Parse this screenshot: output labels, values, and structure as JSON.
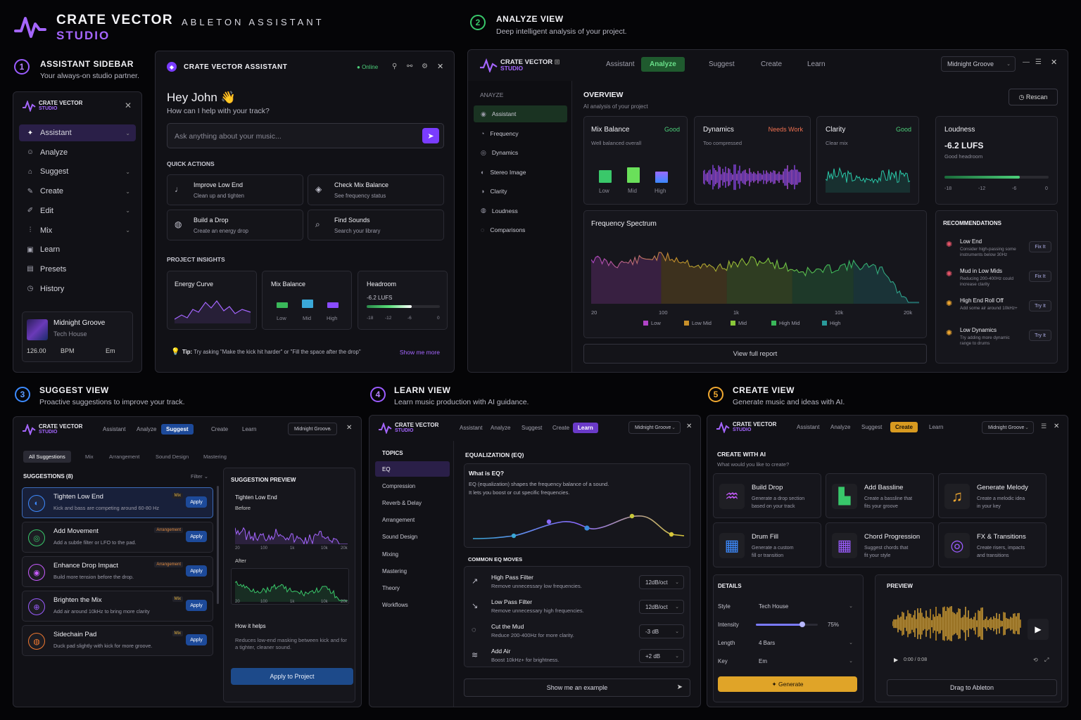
{
  "brand": {
    "name_line1": "CRATE VECTOR",
    "name_line2": "STUDIO",
    "tagline": "ABLETON ASSISTANT",
    "accent": "#a566ff"
  },
  "sections": {
    "s1": {
      "num": "1",
      "title": "ASSISTANT SIDEBAR",
      "sub": "Your always-on studio partner.",
      "color": "#9b5cff"
    },
    "s2": {
      "num": "2",
      "title": "ANALYZE VIEW",
      "sub": "Deep intelligent analysis of your project.",
      "color": "#38c76a"
    },
    "s3": {
      "num": "3",
      "title": "SUGGEST VIEW",
      "sub": "Proactive suggestions to improve your track.",
      "color": "#3d8bff"
    },
    "s4": {
      "num": "4",
      "title": "LEARN VIEW",
      "sub": "Learn music production with AI guidance.",
      "color": "#9b5cff"
    },
    "s5": {
      "num": "5",
      "title": "CREATE VIEW",
      "sub": "Generate music and ideas with AI.",
      "color": "#f0a830"
    }
  },
  "sidebar": {
    "logo1": "CRATE VECTOR",
    "logo2": "STUDIO",
    "items": [
      {
        "label": "Assistant",
        "icon": "sparkle-icon",
        "glyph": "✦"
      },
      {
        "label": "Analyze",
        "icon": "user-icon",
        "glyph": "☺"
      },
      {
        "label": "Suggest",
        "icon": "tag-icon",
        "glyph": "⌂"
      },
      {
        "label": "Create",
        "icon": "pencil-icon",
        "glyph": "✎"
      },
      {
        "label": "Edit",
        "icon": "edit-icon",
        "glyph": "✐"
      },
      {
        "label": "Mix",
        "icon": "sliders-icon",
        "glyph": "⫶"
      },
      {
        "label": "Learn",
        "icon": "book-icon",
        "glyph": "▣"
      },
      {
        "label": "Presets",
        "icon": "preset-icon",
        "glyph": "▤"
      },
      {
        "label": "History",
        "icon": "clock-icon",
        "glyph": "◷"
      }
    ],
    "project": {
      "name": "Midnight Groove",
      "genre": "Tech House",
      "bpm": "126.00",
      "bpm_label": "BPM",
      "key": "Em"
    }
  },
  "assistant": {
    "title": "CRATE VECTOR ASSISTANT",
    "status": "Online",
    "greeting": "Hey John 👋",
    "prompt": "How can I help with your track?",
    "input_placeholder": "Ask anything about your music...",
    "quick_title": "QUICK ACTIONS",
    "quick": [
      {
        "title": "Improve Low End",
        "sub": "Clean up and tighten",
        "glyph": "♩"
      },
      {
        "title": "Check Mix Balance",
        "sub": "See frequency status",
        "glyph": "◈"
      },
      {
        "title": "Build a Drop",
        "sub": "Create an energy drop",
        "glyph": "◍"
      },
      {
        "title": "Find Sounds",
        "sub": "Search your library",
        "glyph": "⌕"
      }
    ],
    "insights_title": "PROJECT INSIGHTS",
    "insights": {
      "energy": "Energy Curve",
      "balance": "Mix Balance",
      "headroom": "Headroom",
      "lufs": "-6.2 LUFS",
      "bands": [
        "Low",
        "Mid",
        "High"
      ],
      "scale": [
        "-18",
        "-12",
        "-6",
        "0"
      ]
    },
    "tip_label": "Tip:",
    "tip": "Try asking \"Make the kick hit harder\" or \"Fill the space after the drop\"",
    "show_more": "Show me more"
  },
  "analyze": {
    "tabs": [
      "Assistant",
      "Analyze",
      "Suggest",
      "Create",
      "Learn"
    ],
    "project": "Midnight Groove",
    "side_title": "ANAYZE",
    "side_items": [
      "Assistant",
      "Frequency",
      "Dynamics",
      "Stereo Image",
      "Clarity",
      "Loudness",
      "Comparisons"
    ],
    "overview": "OVERVIEW",
    "overview_sub": "AI analysis of your project",
    "rescan": "Rescan",
    "cards": {
      "mix": {
        "title": "Mix Balance",
        "status": "Good",
        "desc": "Well balanced overall",
        "bands": [
          "Low",
          "Mid",
          "High"
        ]
      },
      "dyn": {
        "title": "Dynamics",
        "status": "Needs Work",
        "desc": "Too compressed"
      },
      "clar": {
        "title": "Clarity",
        "status": "Good",
        "desc": "Clear mix"
      },
      "loud": {
        "title": "Loudness",
        "value": "-6.2 LUFS",
        "desc": "Good headroom",
        "scale": [
          "-18",
          "-12",
          "-6",
          "0"
        ],
        "level": 0.72
      }
    },
    "spectrum": {
      "title": "Frequency Spectrum",
      "ticks": [
        "20",
        "100",
        "1k",
        "10k",
        "20k"
      ],
      "legend": [
        {
          "n": "Low",
          "c": "#b144c8"
        },
        {
          "n": "Low Mid",
          "c": "#c8902a"
        },
        {
          "n": "Mid",
          "c": "#8ac83a"
        },
        {
          "n": "High Mid",
          "c": "#3ab85a"
        },
        {
          "n": "High",
          "c": "#2a9a9a"
        }
      ]
    },
    "report": "View full report",
    "rec_title": "RECOMMENDATIONS",
    "recs": [
      {
        "title": "Low End",
        "desc": "Consider high-passing some instruments below 30Hz",
        "action": "Fix It",
        "color": "#e8556a"
      },
      {
        "title": "Mud in Low Mids",
        "desc": "Reducing 200-400Hz could increase clarity",
        "action": "Fix It",
        "color": "#e8556a"
      },
      {
        "title": "High End Roll Off",
        "desc": "Add some air around 10kHz+",
        "action": "Try It",
        "color": "#f0a830"
      },
      {
        "title": "Low Dynamics",
        "desc": "Try adding more dynamic range to drums",
        "action": "Try It",
        "color": "#f0a830"
      }
    ]
  },
  "suggest": {
    "tabs": [
      "Assistant",
      "Analyze",
      "Suggest",
      "Create",
      "Learn"
    ],
    "project": "Midnight Groove",
    "filters": [
      "All Suggestions",
      "Mix",
      "Arrangement",
      "Sound Design",
      "Mastering"
    ],
    "list_title": "SUGGESTIONS (8)",
    "filter_label": "Filter",
    "items": [
      {
        "title": "Tighten Low End",
        "desc": "Kick and bass are competing around 60-80 Hz",
        "tag": "Mix",
        "color": "#3d8bff",
        "glyph": "◐"
      },
      {
        "title": "Add Movement",
        "desc": "Add a subtle filter or LFO to the pad.",
        "tag": "Arrangement",
        "color": "#38c76a",
        "glyph": "◎"
      },
      {
        "title": "Enhance Drop Impact",
        "desc": "Build more tension before the drop.",
        "tag": "Arrangement",
        "color": "#c85cff",
        "glyph": "◉"
      },
      {
        "title": "Brighten the Mix",
        "desc": "Add air around 10kHz to bring more clarity",
        "tag": "Mix",
        "color": "#9b5cff",
        "glyph": "⊕"
      },
      {
        "title": "Sidechain Pad",
        "desc": "Duck pad slightly with kick for more groove.",
        "tag": "Mix",
        "color": "#f07830",
        "glyph": "◍"
      }
    ],
    "apply": "Apply",
    "preview_title": "SUGGESTION PREVIEW",
    "preview_name": "Tighten Low End",
    "before": "Before",
    "after": "After",
    "ticks": [
      "20",
      "100",
      "1k",
      "10k",
      "20k"
    ],
    "how_title": "How it helps",
    "how_desc": "Reduces low-end masking between kick and for a tighter, cleaner sound.",
    "apply_project": "Apply to Project"
  },
  "learn": {
    "tabs": [
      "Assistant",
      "Analyze",
      "Suggest",
      "Create",
      "Learn"
    ],
    "project": "Midnight Groove",
    "topics_title": "TOPICS",
    "topics": [
      "EQ",
      "Compression",
      "Reverb & Delay",
      "Arrangement",
      "Sound Design",
      "Mixing",
      "Mastering",
      "Theory",
      "Workflows"
    ],
    "heading": "EQUALIZATION (EQ)",
    "what_title": "What is EQ?",
    "what_desc1": "EQ (equalization) shapes the frequency balance of a sound.",
    "what_desc2": "It lets you boost or cut specific frequencies.",
    "moves_title": "COMMON EQ MOVES",
    "moves": [
      {
        "title": "High Pass Filter",
        "desc": "Remove unnecessary low frequencies.",
        "value": "12dB/oct",
        "glyph": "↗"
      },
      {
        "title": "Low Pass Filter",
        "desc": "Remove unnecessary high frequencies.",
        "value": "12dB/oct",
        "glyph": "↘"
      },
      {
        "title": "Cut the Mud",
        "desc": "Reduce 200-400Hz for more clarity.",
        "value": "-3 dB",
        "glyph": "◌"
      },
      {
        "title": "Add Air",
        "desc": "Boost 10kHz+ for brightness.",
        "value": "+2 dB",
        "glyph": "≋"
      }
    ],
    "example": "Show me an example"
  },
  "create": {
    "tabs": [
      "Assistant",
      "Analyze",
      "Suggest",
      "Create",
      "Learn"
    ],
    "project": "Midnight Groove",
    "title": "CREATE WITH AI",
    "sub": "What would you like to create?",
    "options": [
      {
        "title": "Build Drop",
        "desc1": "Generate a drop section",
        "desc2": "based on your track",
        "color": "#c85cff",
        "glyph": "♒"
      },
      {
        "title": "Add Bassline",
        "desc1": "Create a bassline that",
        "desc2": "fits your groove",
        "color": "#38c76a",
        "glyph": "▙"
      },
      {
        "title": "Generate Melody",
        "desc1": "Create a melodic idea",
        "desc2": "in your key",
        "color": "#f0a830",
        "glyph": "♫"
      },
      {
        "title": "Drum Fill",
        "desc1": "Generate a custom",
        "desc2": "fill or transition",
        "color": "#3d8bff",
        "glyph": "▦"
      },
      {
        "title": "Chord Progression",
        "desc1": "Suggest chords that",
        "desc2": "fit your style",
        "color": "#9b5cff",
        "glyph": "▦"
      },
      {
        "title": "FX & Transitions",
        "desc1": "Create risers, impacts",
        "desc2": "and transitions",
        "color": "#9b5cff",
        "glyph": "◎"
      }
    ],
    "details_title": "DETAILS",
    "details": {
      "style_label": "Style",
      "style": "Tech House",
      "intensity_label": "Intensity",
      "intensity": "75%",
      "intensity_value": 0.75,
      "length_label": "Length",
      "length": "4 Bars",
      "key_label": "Key",
      "key": "Em"
    },
    "generate": "Generate",
    "preview_title": "PREVIEW",
    "time": "0:00 / 0:08",
    "drag": "Drag to Ableton"
  }
}
